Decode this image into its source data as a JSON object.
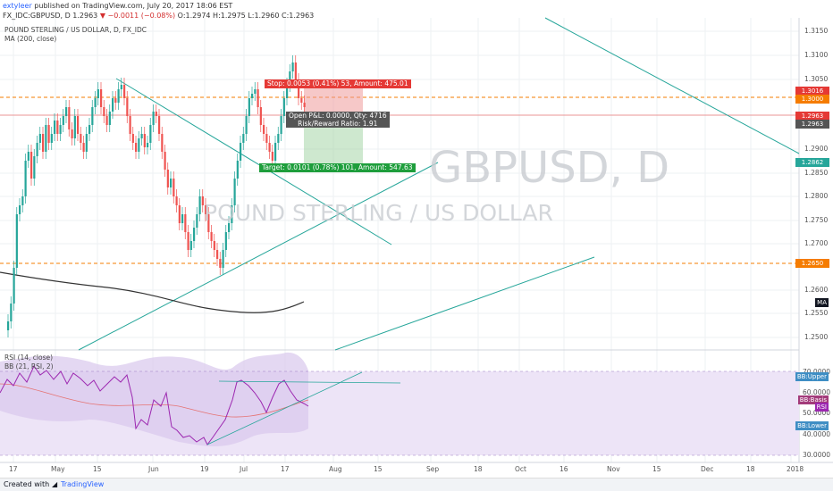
{
  "header": {
    "publisher": "extyleer",
    "published_text": "published on TradingView.com, July 20, 2017 18:06 EST",
    "symbol_line": "FX_IDC:GBPUSD, D 1.2963",
    "change": "▼ −0.0011 (−0.08%)",
    "ohlc": "O:1.2974 H:1.2975 L:1.2960 C:1.2963"
  },
  "legend": {
    "title": "POUND STERLING / US DOLLAR, D, FX_IDC",
    "ma": "MA (200, close)",
    "rsi": "RSI (14, close)",
    "bb": "BB (21, RSI, 2)"
  },
  "watermark": {
    "symbol": "GBPUSD, D",
    "name": "POUND STERLING / US DOLLAR"
  },
  "trade": {
    "stop": "Stop: 0.0053 (0.41%) 53, Amount: 475.01",
    "open": "Open P&L: 0.0000, Qty: 4716",
    "rr": "Risk/Reward Ratio: 1.91",
    "target": "Target: 0.0101 (0.78%) 101, Amount: 547.63"
  },
  "price_axis": {
    "ticks": [
      "1.3150",
      "1.3100",
      "1.3050",
      "1.2900",
      "1.2850",
      "1.2800",
      "1.2750",
      "1.2700",
      "1.2600",
      "1.2550",
      "1.2500"
    ],
    "labels": [
      {
        "text": "1.3016",
        "color": "#e53935"
      },
      {
        "text": "1.3000",
        "color": "#f57c00"
      },
      {
        "text": "1.2963",
        "color": "#e53935"
      },
      {
        "text": "1.2963",
        "color": "#555555"
      },
      {
        "text": "1.2862",
        "color": "#26a69a"
      },
      {
        "text": "1.2650",
        "color": "#f57c00"
      }
    ],
    "ma_tag": "MA"
  },
  "rsi_axis": {
    "ticks": [
      "70.0000",
      "60.0000",
      "50.0000",
      "40.0000",
      "30.0000"
    ],
    "bb_upper": "BB:Upper",
    "bb_basis": "BB:Basis",
    "rsi": "RSI",
    "bb_lower": "BB:Lower"
  },
  "time_axis": [
    "17",
    "May",
    "15",
    "Jun",
    "19",
    "Jul",
    "17",
    "Aug",
    "15",
    "Sep",
    "18",
    "Oct",
    "16",
    "Nov",
    "15",
    "Dec",
    "18",
    "2018"
  ],
  "footer": {
    "created_with": "Created with",
    "brand": "TradingView"
  },
  "colors": {
    "up": "#26a69a",
    "down": "#ef5350",
    "trendline": "#26a69a",
    "ma": "#333333",
    "rsi": "#9c27b0",
    "bb_fill": "#e1d5f0"
  }
}
